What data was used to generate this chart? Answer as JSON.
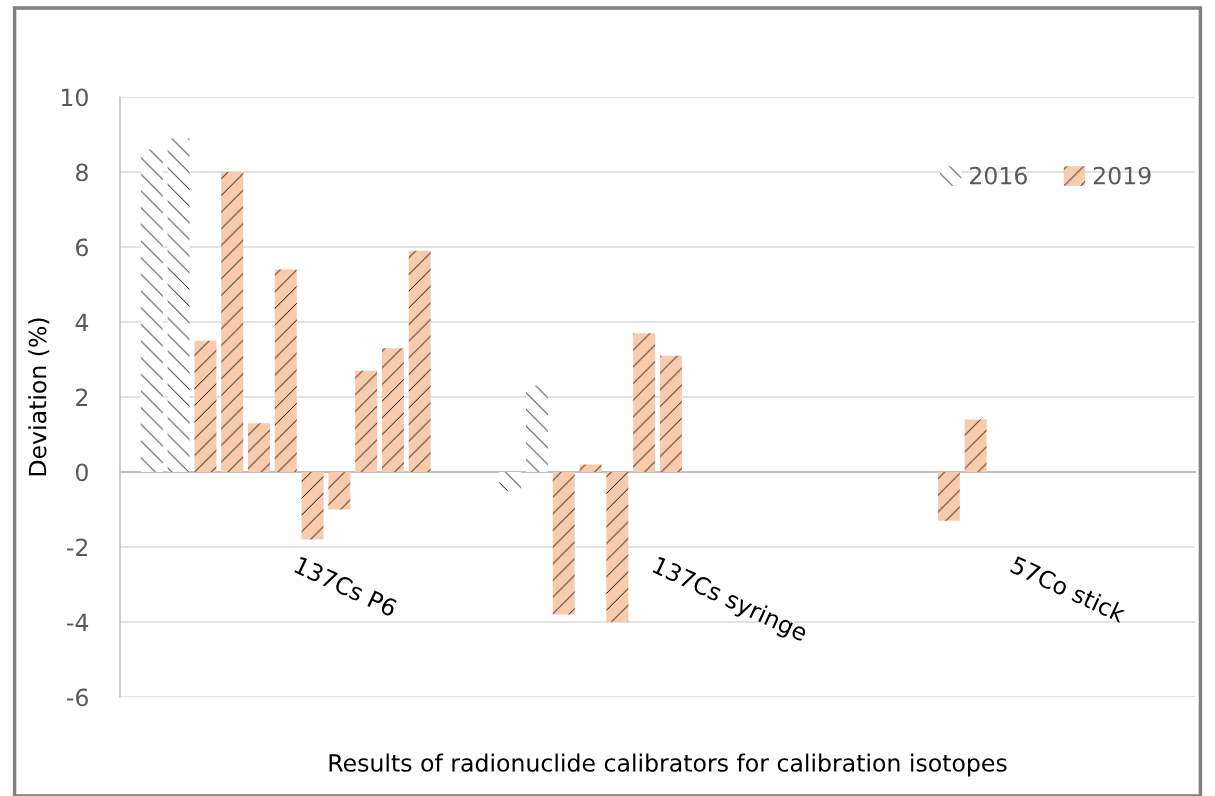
{
  "chart_data": {
    "type": "bar",
    "xlabel": "Results of radionuclide calibrators for calibration isotopes",
    "ylabel": "Deviation (%)",
    "categories": [
      "137Cs P6",
      "137Cs syringe",
      "57Co stick"
    ],
    "series": [
      {
        "name": "2016",
        "color": "#ffffff",
        "values": [
          8.6,
          -0.5,
          null
        ]
      },
      {
        "color": "#ffffff",
        "values": [
          8.9,
          2.3,
          null
        ]
      },
      {
        "name": "2019",
        "color": "#f8cbad",
        "values": [
          3.5,
          -3.8,
          null
        ]
      },
      {
        "color": "#f8cbad",
        "values": [
          8.0,
          0.2,
          -1.3
        ]
      },
      {
        "color": "#f8cbad",
        "values": [
          1.3,
          -4.0,
          1.4
        ]
      },
      {
        "color": "#f8cbad",
        "values": [
          5.4,
          3.7,
          null
        ]
      },
      {
        "color": "#f8cbad",
        "values": [
          -1.8,
          3.1,
          null
        ]
      },
      {
        "color": "#f8cbad",
        "values": [
          -1.0,
          null,
          null
        ]
      },
      {
        "color": "#f8cbad",
        "values": [
          2.7,
          null,
          null
        ]
      },
      {
        "color": "#f8cbad",
        "values": [
          3.3,
          null,
          null
        ]
      },
      {
        "color": "#f8cbad",
        "values": [
          5.9,
          null,
          null
        ]
      },
      {
        "color": "#f8cbad",
        "values": [
          null,
          null,
          null
        ]
      }
    ],
    "ylim": [
      -6,
      10
    ],
    "yticks": [
      -6,
      -4,
      -2,
      0,
      2,
      4,
      6,
      8,
      10
    ],
    "grid": "y",
    "legend": "top right"
  }
}
